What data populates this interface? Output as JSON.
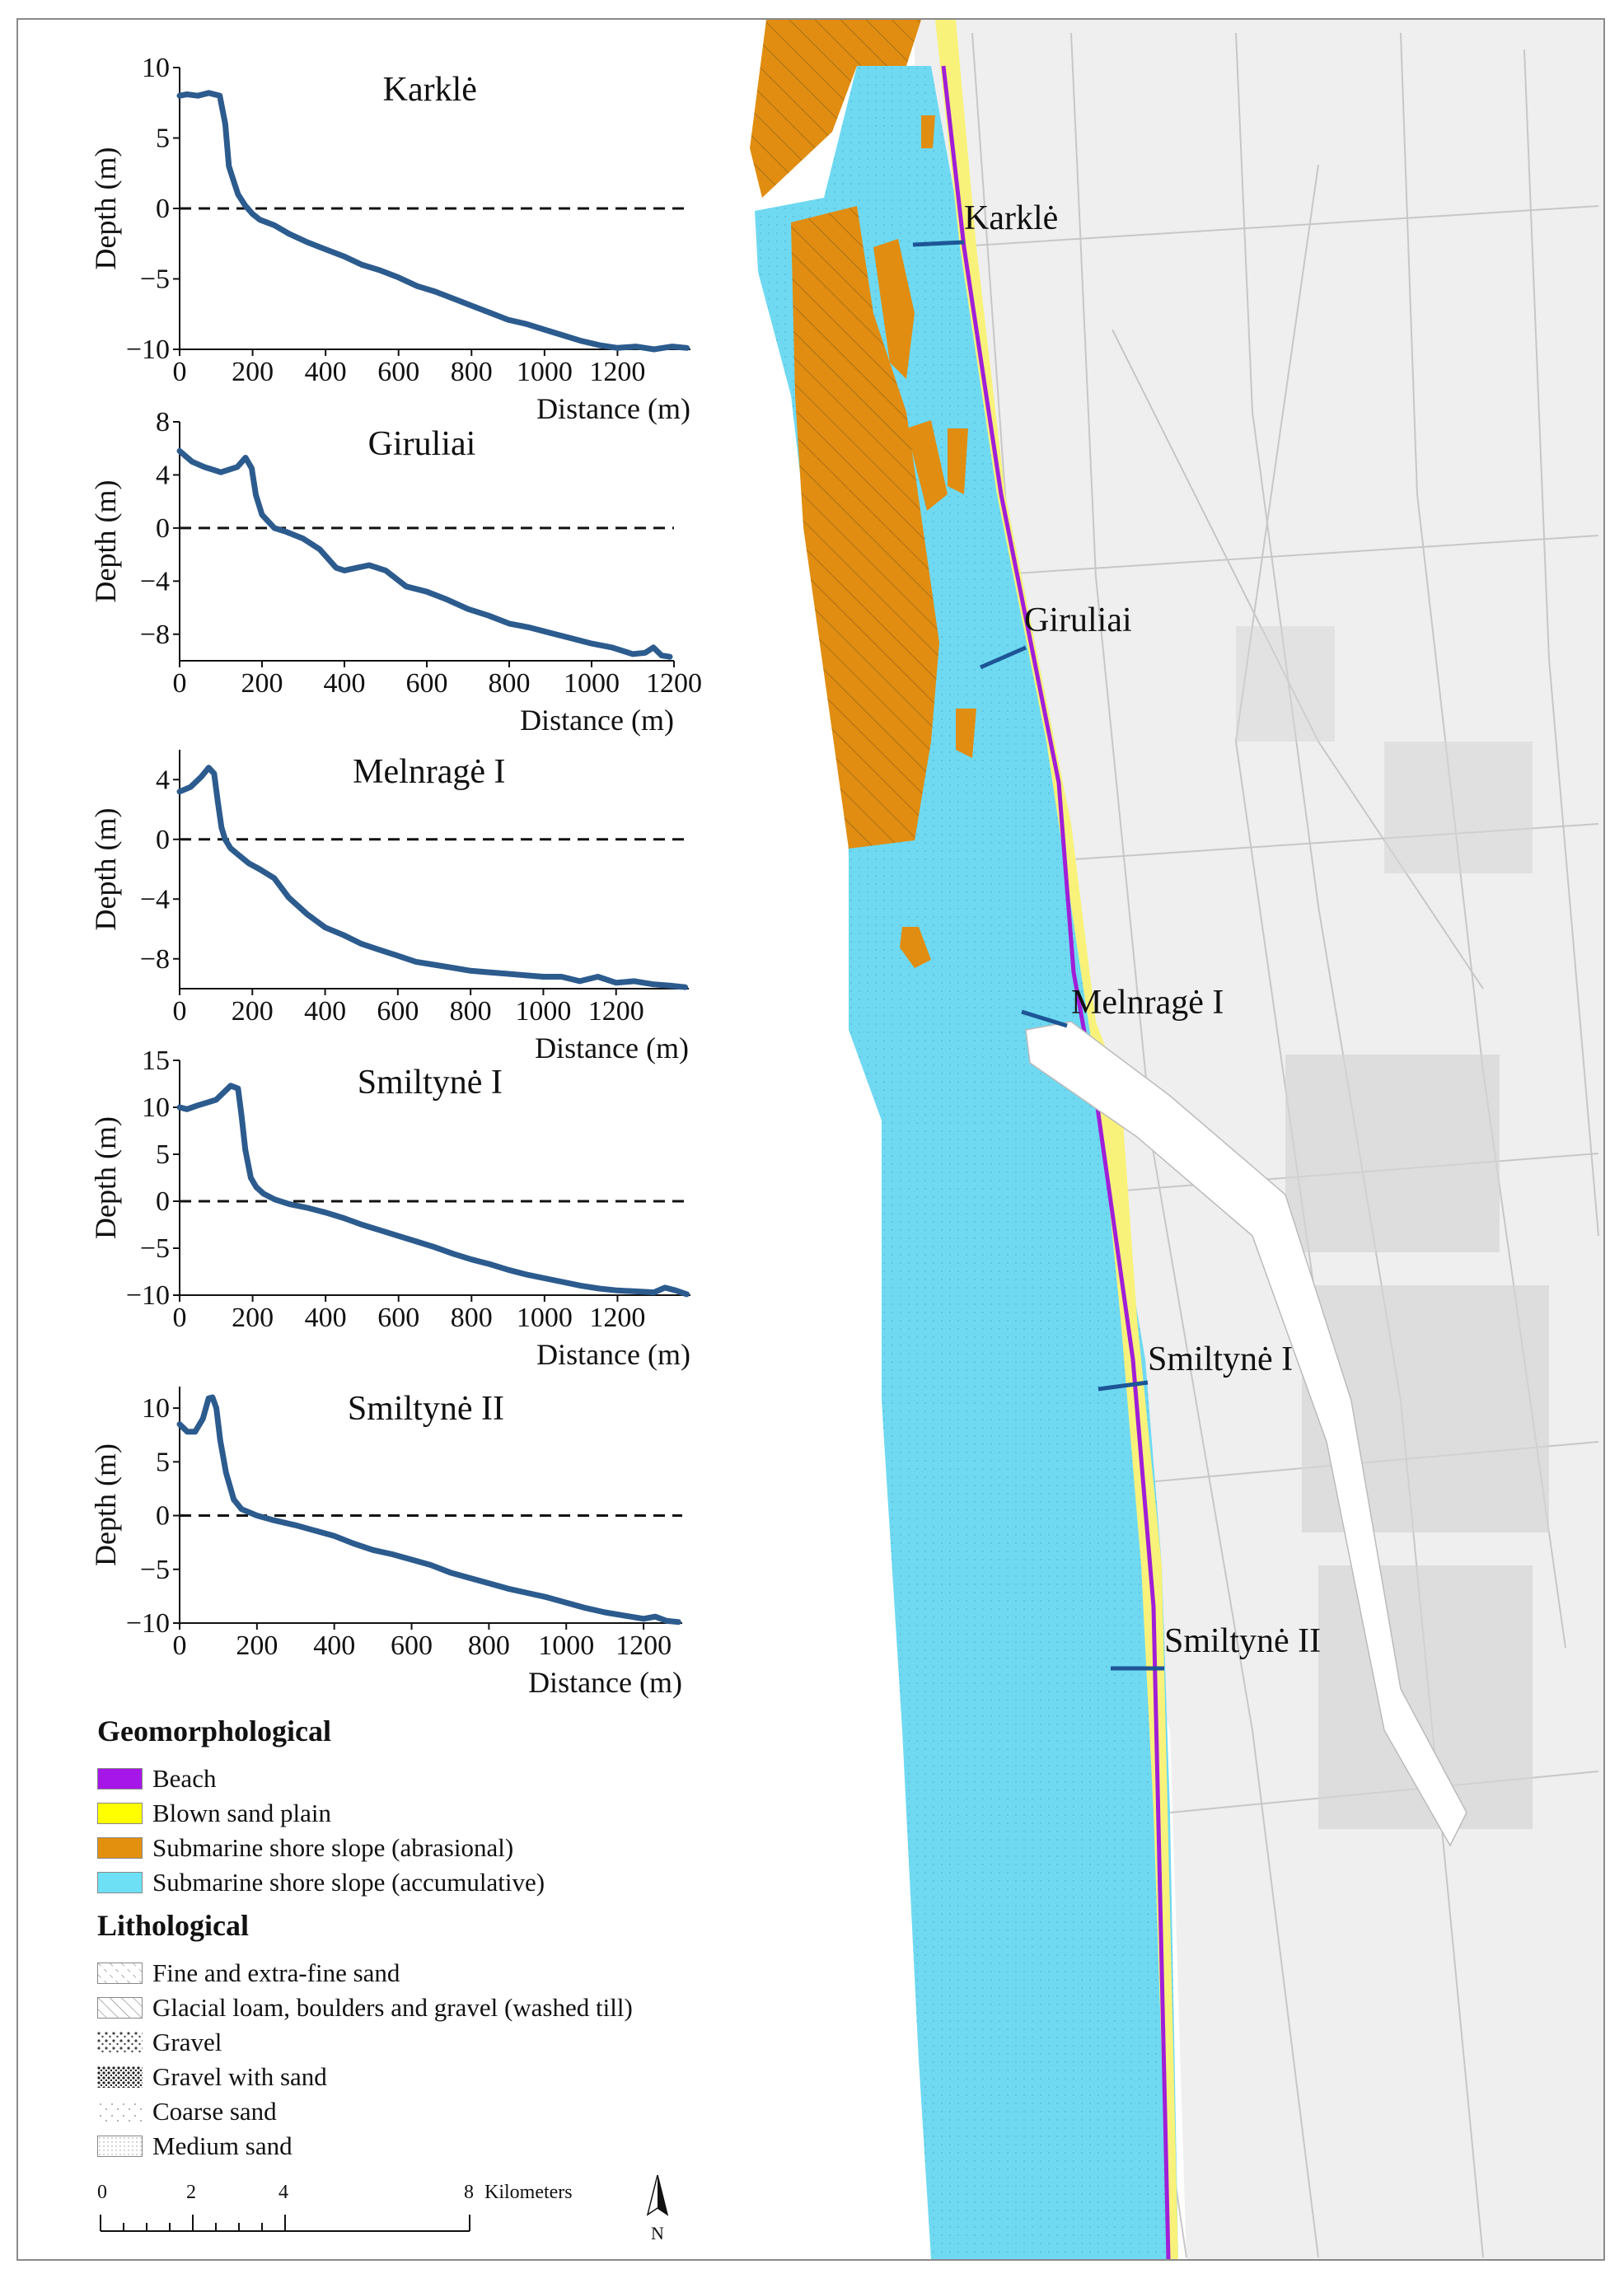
{
  "chart_data": [
    {
      "type": "line",
      "title": "Karklė",
      "xlabel": "Distance (m)",
      "ylabel": "Depth (m)",
      "xlim": [
        0,
        1400
      ],
      "ylim": [
        -10,
        10
      ],
      "xticks": [
        0,
        200,
        400,
        600,
        800,
        1000,
        1200
      ],
      "yticks": [
        -10,
        -5,
        0,
        5,
        10
      ],
      "reference_line_y": 0,
      "x": [
        0,
        20,
        50,
        80,
        110,
        125,
        135,
        145,
        160,
        180,
        200,
        220,
        260,
        300,
        350,
        400,
        450,
        500,
        550,
        600,
        650,
        700,
        750,
        800,
        850,
        900,
        950,
        1000,
        1050,
        1100,
        1150,
        1200,
        1250,
        1300,
        1350,
        1390
      ],
      "y": [
        8.0,
        8.1,
        8.0,
        8.2,
        8.0,
        6.0,
        3.0,
        2.2,
        1.0,
        0.2,
        -0.4,
        -0.8,
        -1.2,
        -1.8,
        -2.4,
        -2.9,
        -3.4,
        -4.0,
        -4.4,
        -4.9,
        -5.5,
        -5.9,
        -6.4,
        -6.9,
        -7.4,
        -7.9,
        -8.2,
        -8.6,
        -9.0,
        -9.4,
        -9.7,
        -9.9,
        -9.8,
        -10.0,
        -9.8,
        -9.9
      ]
    },
    {
      "type": "line",
      "title": "Giruliai",
      "xlabel": "Distance (m)",
      "ylabel": "Depth (m)",
      "xlim": [
        0,
        1200
      ],
      "ylim": [
        -10,
        8
      ],
      "xticks": [
        0,
        200,
        400,
        600,
        800,
        1000,
        1200
      ],
      "yticks": [
        -8,
        -4,
        0,
        4,
        8
      ],
      "reference_line_y": 0,
      "x": [
        0,
        30,
        60,
        100,
        140,
        160,
        175,
        185,
        200,
        230,
        260,
        300,
        340,
        380,
        400,
        430,
        460,
        500,
        550,
        600,
        650,
        700,
        750,
        800,
        850,
        900,
        950,
        1000,
        1050,
        1100,
        1130,
        1150,
        1170,
        1190
      ],
      "y": [
        5.8,
        5.0,
        4.6,
        4.2,
        4.6,
        5.3,
        4.5,
        2.5,
        1.0,
        0.0,
        -0.3,
        -0.8,
        -1.6,
        -3.0,
        -3.2,
        -3.0,
        -2.8,
        -3.2,
        -4.4,
        -4.8,
        -5.4,
        -6.1,
        -6.6,
        -7.2,
        -7.5,
        -7.9,
        -8.3,
        -8.7,
        -9.0,
        -9.5,
        -9.4,
        -9.0,
        -9.6,
        -9.7
      ]
    },
    {
      "type": "line",
      "title": "Melnragė I",
      "xlabel": "Distance (m)",
      "ylabel": "Depth (m)",
      "xlim": [
        0,
        1400
      ],
      "ylim": [
        -10,
        6
      ],
      "xticks": [
        0,
        200,
        400,
        600,
        800,
        1000,
        1200
      ],
      "yticks": [
        -8,
        -4,
        0,
        4
      ],
      "reference_line_y": 0,
      "x": [
        0,
        30,
        60,
        80,
        95,
        105,
        115,
        125,
        140,
        160,
        190,
        220,
        260,
        300,
        350,
        400,
        450,
        500,
        550,
        600,
        650,
        700,
        750,
        800,
        850,
        900,
        950,
        1000,
        1050,
        1100,
        1150,
        1200,
        1250,
        1300,
        1350,
        1390
      ],
      "y": [
        3.2,
        3.5,
        4.2,
        4.8,
        4.4,
        2.5,
        0.8,
        0.0,
        -0.6,
        -1.0,
        -1.6,
        -2.0,
        -2.6,
        -3.9,
        -5.0,
        -5.9,
        -6.4,
        -7.0,
        -7.4,
        -7.8,
        -8.2,
        -8.4,
        -8.6,
        -8.8,
        -8.9,
        -9.0,
        -9.1,
        -9.2,
        -9.2,
        -9.5,
        -9.2,
        -9.6,
        -9.5,
        -9.7,
        -9.8,
        -9.9
      ]
    },
    {
      "type": "line",
      "title": "Smiltynė I",
      "xlabel": "Distance (m)",
      "ylabel": "Depth (m)",
      "xlim": [
        0,
        1400
      ],
      "ylim": [
        -10,
        15
      ],
      "xticks": [
        0,
        200,
        400,
        600,
        800,
        1000,
        1200
      ],
      "yticks": [
        -10,
        -5,
        0,
        5,
        10,
        15
      ],
      "reference_line_y": 0,
      "x": [
        0,
        20,
        50,
        100,
        140,
        160,
        170,
        180,
        195,
        210,
        230,
        260,
        300,
        350,
        400,
        450,
        500,
        550,
        600,
        650,
        700,
        750,
        800,
        850,
        900,
        950,
        1000,
        1050,
        1100,
        1150,
        1200,
        1250,
        1300,
        1330,
        1360,
        1390
      ],
      "y": [
        10.0,
        9.8,
        10.2,
        10.8,
        12.3,
        12.0,
        9.0,
        5.5,
        2.5,
        1.5,
        0.8,
        0.2,
        -0.3,
        -0.7,
        -1.2,
        -1.8,
        -2.5,
        -3.1,
        -3.7,
        -4.3,
        -4.9,
        -5.6,
        -6.2,
        -6.7,
        -7.3,
        -7.8,
        -8.2,
        -8.6,
        -9.0,
        -9.3,
        -9.5,
        -9.6,
        -9.7,
        -9.2,
        -9.5,
        -9.9
      ]
    },
    {
      "type": "line",
      "title": "Smiltynė II",
      "xlabel": "Distance (m)",
      "ylabel": "Depth (m)",
      "xlim": [
        0,
        1300
      ],
      "ylim": [
        -10,
        12
      ],
      "xticks": [
        0,
        200,
        400,
        600,
        800,
        1000,
        1200
      ],
      "yticks": [
        -10,
        -5,
        0,
        5,
        10
      ],
      "reference_line_y": 0,
      "x": [
        0,
        20,
        40,
        60,
        75,
        85,
        95,
        105,
        120,
        140,
        160,
        180,
        200,
        240,
        300,
        350,
        400,
        450,
        500,
        550,
        600,
        650,
        700,
        750,
        800,
        850,
        900,
        950,
        1000,
        1050,
        1100,
        1150,
        1200,
        1230,
        1260,
        1290
      ],
      "y": [
        8.5,
        7.8,
        7.8,
        9.0,
        10.9,
        11.0,
        10.0,
        7.0,
        4.0,
        1.5,
        0.6,
        0.3,
        0.0,
        -0.4,
        -0.9,
        -1.4,
        -1.9,
        -2.6,
        -3.2,
        -3.6,
        -4.1,
        -4.6,
        -5.3,
        -5.8,
        -6.3,
        -6.8,
        -7.2,
        -7.6,
        -8.1,
        -8.6,
        -9.0,
        -9.3,
        -9.6,
        -9.4,
        -9.8,
        -9.9
      ]
    }
  ],
  "map": {
    "labels": {
      "karkle": "Karklė",
      "giruliai": "Giruliai",
      "melnrage": "Melnragė I",
      "smiltyne1": "Smiltynė I",
      "smiltyne2": "Smiltynė II"
    },
    "colors": {
      "sea_accumulative": "#6fd9f2",
      "abrasional": "#e08d11",
      "beach": "#a01ed8",
      "blown_sand": "#f8f27a",
      "land": "#efefef",
      "profile_line": "#1d5596"
    }
  },
  "legend": {
    "geomorphological_title": "Geomorphological",
    "geomorphological": [
      {
        "label": "Beach",
        "color": "#a716e8"
      },
      {
        "label": "Blown sand plain",
        "color": "#ffff00"
      },
      {
        "label": "Submarine shore slope (abrasional)",
        "color": "#e3900f"
      },
      {
        "label": "Submarine shore slope (accumulative)",
        "color": "#6ee0f6"
      }
    ],
    "lithological_title": "Lithological",
    "lithological": [
      {
        "label": "Fine and extra-fine sand",
        "pattern": "fine-dash-hatch"
      },
      {
        "label": "Glacial loam, boulders and gravel (washed till)",
        "pattern": "diagonal-hatch"
      },
      {
        "label": "Gravel",
        "pattern": "gravel-dots"
      },
      {
        "label": "Gravel with sand",
        "pattern": "dense-gravel-dots"
      },
      {
        "label": "Coarse sand",
        "pattern": "sparse-dots"
      },
      {
        "label": "Medium sand",
        "pattern": "fine-dots"
      }
    ]
  },
  "scale": {
    "ticks": [
      "0",
      "2",
      "4",
      "8"
    ],
    "unit": "Kilometers",
    "north": "N"
  }
}
